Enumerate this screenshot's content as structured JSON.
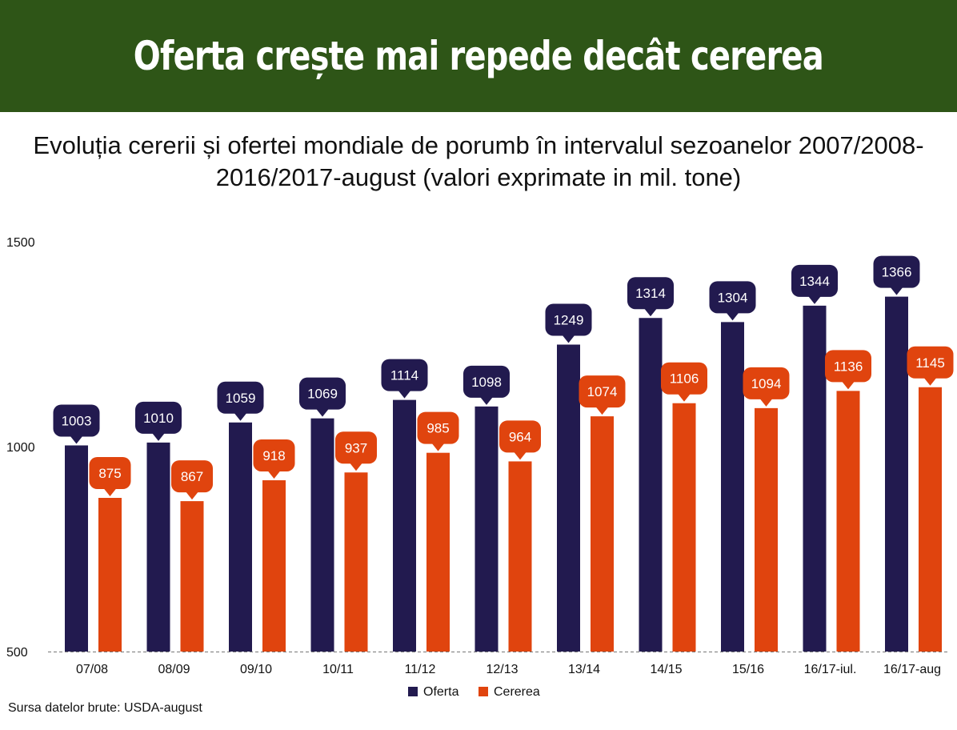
{
  "banner": {
    "title": "Oferta crește mai repede decât cererea"
  },
  "subtitle": {
    "line1": "Evoluția cererii și ofertei mondiale de porumb în intervalul sezoanelor 2007/2008-",
    "line2": "2016/2017-august (valori exprimate in mil. tone)"
  },
  "source": "Sursa datelor brute: USDA-august",
  "chart_data": {
    "type": "bar",
    "categories": [
      "07/08",
      "08/09",
      "09/10",
      "10/11",
      "11/12",
      "12/13",
      "13/14",
      "14/15",
      "15/16",
      "16/17-iul.",
      "16/17-aug"
    ],
    "series": [
      {
        "name": "Oferta",
        "color": "#221a4f",
        "values": [
          1003,
          1010,
          1059,
          1069,
          1114,
          1098,
          1249,
          1314,
          1304,
          1344,
          1366
        ]
      },
      {
        "name": "Cererea",
        "color": "#e0440e",
        "values": [
          875,
          867,
          918,
          937,
          985,
          964,
          1074,
          1106,
          1094,
          1136,
          1145
        ]
      }
    ],
    "ylim": [
      500,
      1500
    ],
    "yticks": [
      500,
      1000,
      1500
    ],
    "legend": "bottom",
    "grid": false
  }
}
